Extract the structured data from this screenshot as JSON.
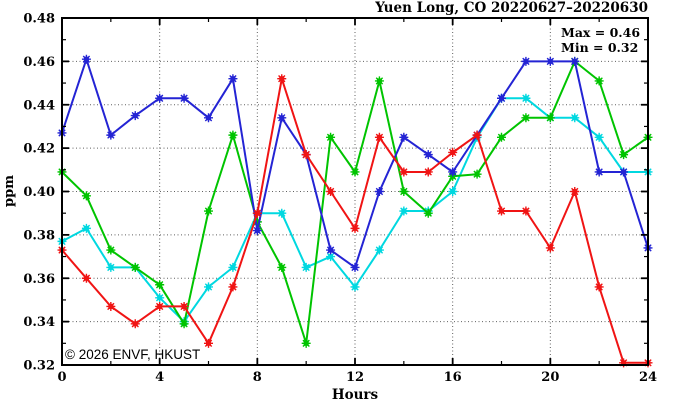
{
  "title": "Yuen Long, CO 20220627–20220630",
  "annotation_box": {
    "max": "Max = 0.46",
    "min": "Min = 0.32"
  },
  "watermark": "© 2026 ENVF, HKUST",
  "axes": {
    "x_label": "Hours",
    "y_label": "ppm"
  },
  "colors": {
    "red": "#f01414",
    "green": "#00c400",
    "blue": "#2424d4",
    "cyan": "#00d8e0",
    "grid": "#606060",
    "frame": "#000000",
    "watermark": "#d8d8d8"
  },
  "chart_data": {
    "type": "line",
    "title": "Yuen Long, CO 20220627–20220630",
    "xlabel": "Hours",
    "ylabel": "ppm",
    "xlim": [
      0,
      24
    ],
    "ylim": [
      0.32,
      0.48
    ],
    "xticks_major": [
      0,
      4,
      8,
      12,
      16,
      20,
      24
    ],
    "xticks_minor": [
      2,
      6,
      10,
      14,
      18,
      22
    ],
    "yticks_major": [
      0.32,
      0.34,
      0.36,
      0.38,
      0.4,
      0.42,
      0.44,
      0.46,
      0.48
    ],
    "yticks_minor": [
      0.33,
      0.35,
      0.37,
      0.39,
      0.41,
      0.43,
      0.45,
      0.47
    ],
    "grid": {
      "style": "dotted",
      "x_at": [
        4,
        8,
        12,
        16,
        20
      ],
      "y_at": [
        0.34,
        0.36,
        0.38,
        0.4,
        0.42,
        0.44,
        0.46
      ]
    },
    "legend_position": "top-right-inside",
    "annotations": [
      "Max = 0.46",
      "Min = 0.32"
    ],
    "marker": "asterisk",
    "x": [
      0,
      1,
      2,
      3,
      4,
      5,
      6,
      7,
      8,
      9,
      10,
      11,
      12,
      13,
      14,
      15,
      16,
      17,
      18,
      19,
      20,
      21,
      22,
      23,
      24
    ],
    "series": [
      {
        "name": "series-cyan",
        "color": "#00d8e0",
        "values": [
          0.377,
          0.383,
          0.365,
          0.365,
          0.351,
          0.34,
          0.356,
          0.365,
          0.39,
          0.39,
          0.365,
          0.37,
          0.356,
          0.373,
          0.391,
          0.391,
          0.4,
          0.425,
          0.443,
          0.443,
          0.434,
          0.434,
          0.425,
          0.409,
          0.409
        ]
      },
      {
        "name": "series-green",
        "color": "#00c400",
        "values": [
          0.409,
          0.398,
          0.373,
          0.365,
          0.357,
          0.339,
          0.391,
          0.426,
          0.386,
          0.365,
          0.33,
          0.425,
          0.409,
          0.451,
          0.4,
          0.39,
          0.407,
          0.408,
          0.425,
          0.434,
          0.434,
          0.46,
          0.451,
          0.417,
          0.425
        ]
      },
      {
        "name": "series-blue",
        "color": "#2424d4",
        "values": [
          0.427,
          0.461,
          0.426,
          0.435,
          0.443,
          0.443,
          0.434,
          0.452,
          0.382,
          0.434,
          0.417,
          0.373,
          0.365,
          0.4,
          0.425,
          0.417,
          0.409,
          0.426,
          0.443,
          0.46,
          0.46,
          0.46,
          0.409,
          0.409,
          0.374
        ]
      },
      {
        "name": "series-red",
        "color": "#f01414",
        "values": [
          0.373,
          0.36,
          0.347,
          0.339,
          0.347,
          0.347,
          0.33,
          0.356,
          0.39,
          0.452,
          0.417,
          0.4,
          0.383,
          0.425,
          0.409,
          0.409,
          0.418,
          0.426,
          0.391,
          0.391,
          0.374,
          0.4,
          0.356,
          0.321,
          0.321
        ]
      }
    ]
  }
}
